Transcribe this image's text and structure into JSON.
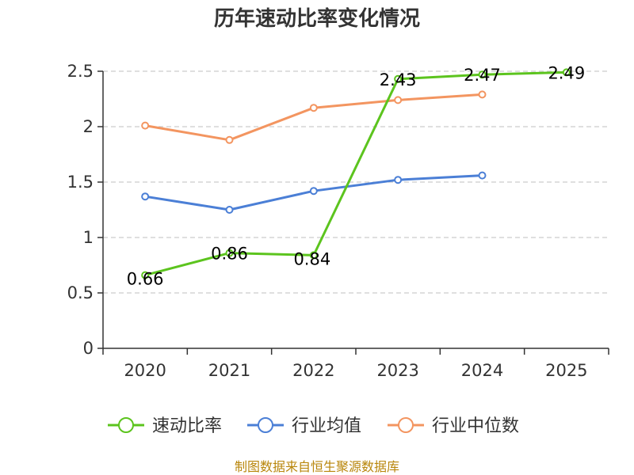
{
  "chart_data": {
    "type": "line",
    "title": "历年速动比率变化情况",
    "categories": [
      "2020",
      "2021",
      "2022",
      "2023",
      "2024",
      "2025"
    ],
    "ylim": [
      0,
      2.5
    ],
    "yticks": [
      0,
      0.5,
      1,
      1.5,
      2,
      2.5
    ],
    "ytick_labels": [
      "0",
      "0.5",
      "1",
      "1.5",
      "2",
      "2.5"
    ],
    "grid": "horizontal dashed",
    "legend_position": "bottom",
    "series": [
      {
        "name": "速动比率",
        "color": "#5cc41e",
        "values": [
          0.66,
          0.86,
          0.84,
          2.43,
          2.47,
          2.49
        ],
        "labels": [
          "0.66",
          "0.86",
          "0.84",
          "2.43",
          "2.47",
          "2.49"
        ]
      },
      {
        "name": "行业均值",
        "color": "#4b7fd6",
        "values": [
          1.37,
          1.25,
          1.42,
          1.52,
          1.56,
          null
        ]
      },
      {
        "name": "行业中位数",
        "color": "#f39560",
        "values": [
          2.01,
          1.88,
          2.17,
          2.24,
          2.29,
          null
        ]
      }
    ],
    "source": "制图数据来自恒生聚源数据库"
  }
}
